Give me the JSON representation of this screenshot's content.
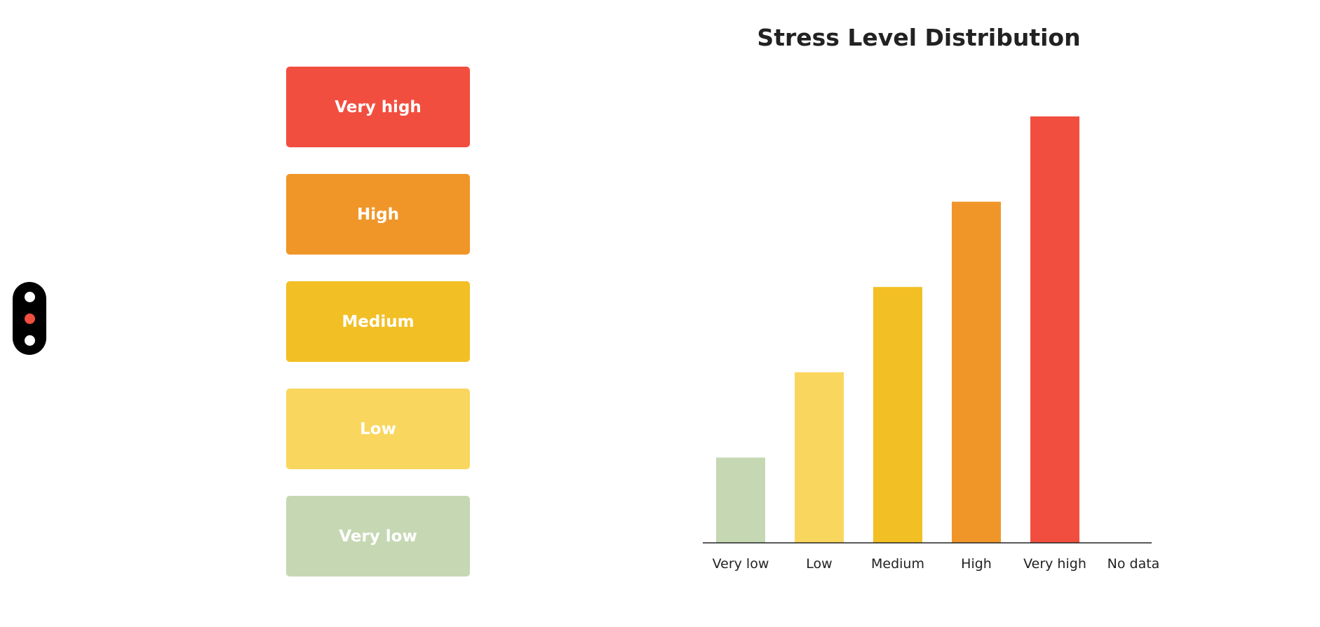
{
  "pager": {
    "dots": [
      {
        "color": "#ffffff"
      },
      {
        "color": "#f04e3e"
      },
      {
        "color": "#ffffff"
      }
    ]
  },
  "levels": [
    {
      "label": "Very high",
      "color": "#f24e3f"
    },
    {
      "label": "High",
      "color": "#f09629"
    },
    {
      "label": "Medium",
      "color": "#f2bf24"
    },
    {
      "label": "Low",
      "color": "#f9d65e"
    },
    {
      "label": "Very low",
      "color": "#c5d8b3"
    }
  ],
  "chart_data": {
    "type": "bar",
    "title": "Stress Level Distribution",
    "categories": [
      "Very low",
      "Low",
      "Medium",
      "High",
      "Very high",
      "No data"
    ],
    "values": [
      1,
      2,
      3,
      4,
      5,
      0
    ],
    "colors": [
      "#c5d8b3",
      "#f9d65e",
      "#f2bf24",
      "#f09629",
      "#f24e3f",
      "#cccccc"
    ],
    "xlabel": "",
    "ylabel": "",
    "ylim": [
      0,
      5
    ],
    "grid": false,
    "legend": "none"
  }
}
